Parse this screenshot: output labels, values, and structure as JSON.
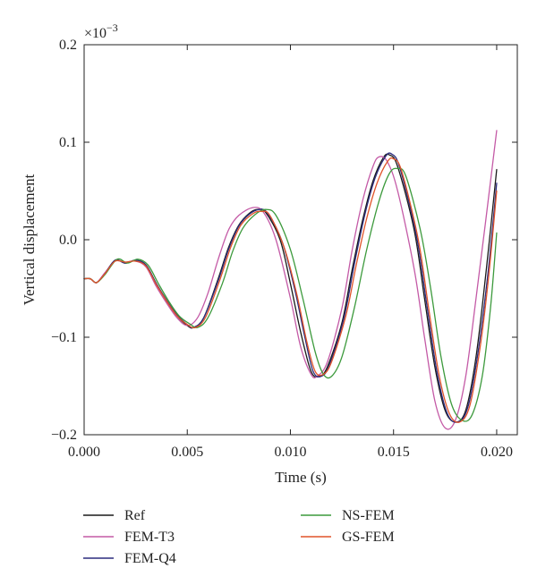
{
  "chart_data": {
    "type": "line",
    "xlabel": "Time (s)",
    "ylabel": "Vertical displacement",
    "multiplier": "×10",
    "multiplier_exp": "−3",
    "xlim": [
      0.0,
      0.021
    ],
    "ylim": [
      -0.2,
      0.2
    ],
    "xticks": [
      0.0,
      0.005,
      0.01,
      0.015,
      0.02
    ],
    "xtick_labels": [
      "0.000",
      "0.005",
      "0.010",
      "0.015",
      "0.020"
    ],
    "yticks": [
      -0.2,
      -0.1,
      0.0,
      0.1,
      0.2
    ],
    "ytick_labels": [
      "−0.2",
      "−0.1",
      "0.0",
      "0.1",
      "0.2"
    ],
    "grid": false,
    "legend_position": "bottom",
    "series": [
      {
        "name": "Ref",
        "color": "#1a1a1a",
        "points": [
          [
            0.0,
            -0.04
          ],
          [
            0.0003,
            -0.04
          ],
          [
            0.0006,
            -0.044
          ],
          [
            0.001,
            -0.035
          ],
          [
            0.0015,
            -0.021
          ],
          [
            0.002,
            -0.024
          ],
          [
            0.0025,
            -0.021
          ],
          [
            0.003,
            -0.026
          ],
          [
            0.0035,
            -0.045
          ],
          [
            0.004,
            -0.063
          ],
          [
            0.0045,
            -0.078
          ],
          [
            0.005,
            -0.088
          ],
          [
            0.0053,
            -0.09
          ],
          [
            0.0058,
            -0.08
          ],
          [
            0.0065,
            -0.04
          ],
          [
            0.007,
            -0.008
          ],
          [
            0.0075,
            0.015
          ],
          [
            0.008,
            0.027
          ],
          [
            0.0084,
            0.031
          ],
          [
            0.0088,
            0.028
          ],
          [
            0.0095,
            0.0
          ],
          [
            0.01,
            -0.045
          ],
          [
            0.0105,
            -0.095
          ],
          [
            0.011,
            -0.135
          ],
          [
            0.0114,
            -0.14
          ],
          [
            0.0118,
            -0.13
          ],
          [
            0.0125,
            -0.085
          ],
          [
            0.013,
            -0.03
          ],
          [
            0.0135,
            0.02
          ],
          [
            0.014,
            0.06
          ],
          [
            0.0145,
            0.084
          ],
          [
            0.0148,
            0.087
          ],
          [
            0.0152,
            0.075
          ],
          [
            0.016,
            0.01
          ],
          [
            0.0165,
            -0.06
          ],
          [
            0.017,
            -0.13
          ],
          [
            0.0175,
            -0.175
          ],
          [
            0.018,
            -0.187
          ],
          [
            0.0185,
            -0.175
          ],
          [
            0.019,
            -0.12
          ],
          [
            0.0195,
            -0.03
          ],
          [
            0.02,
            0.072
          ]
        ]
      },
      {
        "name": "FEM-T3",
        "color": "#c45aa6",
        "points": [
          [
            0.0,
            -0.04
          ],
          [
            0.0003,
            -0.04
          ],
          [
            0.0006,
            -0.044
          ],
          [
            0.001,
            -0.034
          ],
          [
            0.0015,
            -0.022
          ],
          [
            0.002,
            -0.023
          ],
          [
            0.0025,
            -0.022
          ],
          [
            0.003,
            -0.028
          ],
          [
            0.0035,
            -0.048
          ],
          [
            0.004,
            -0.065
          ],
          [
            0.0045,
            -0.08
          ],
          [
            0.005,
            -0.088
          ],
          [
            0.0055,
            -0.08
          ],
          [
            0.006,
            -0.055
          ],
          [
            0.0065,
            -0.02
          ],
          [
            0.007,
            0.01
          ],
          [
            0.0075,
            0.025
          ],
          [
            0.0082,
            0.033
          ],
          [
            0.0087,
            0.028
          ],
          [
            0.0093,
            0.0
          ],
          [
            0.01,
            -0.06
          ],
          [
            0.0105,
            -0.11
          ],
          [
            0.011,
            -0.138
          ],
          [
            0.0113,
            -0.14
          ],
          [
            0.0118,
            -0.125
          ],
          [
            0.0125,
            -0.07
          ],
          [
            0.013,
            -0.01
          ],
          [
            0.0135,
            0.04
          ],
          [
            0.014,
            0.075
          ],
          [
            0.0143,
            0.085
          ],
          [
            0.0147,
            0.08
          ],
          [
            0.0152,
            0.05
          ],
          [
            0.016,
            -0.03
          ],
          [
            0.0165,
            -0.1
          ],
          [
            0.017,
            -0.165
          ],
          [
            0.0175,
            -0.193
          ],
          [
            0.018,
            -0.185
          ],
          [
            0.0185,
            -0.14
          ],
          [
            0.019,
            -0.06
          ],
          [
            0.0195,
            0.025
          ],
          [
            0.02,
            0.112
          ]
        ]
      },
      {
        "name": "FEM-Q4",
        "color": "#2c2c7e",
        "points": [
          [
            0.0,
            -0.04
          ],
          [
            0.0003,
            -0.04
          ],
          [
            0.0006,
            -0.044
          ],
          [
            0.001,
            -0.035
          ],
          [
            0.0015,
            -0.021
          ],
          [
            0.002,
            -0.024
          ],
          [
            0.0025,
            -0.021
          ],
          [
            0.003,
            -0.026
          ],
          [
            0.0035,
            -0.045
          ],
          [
            0.004,
            -0.062
          ],
          [
            0.0045,
            -0.077
          ],
          [
            0.005,
            -0.087
          ],
          [
            0.0053,
            -0.09
          ],
          [
            0.0058,
            -0.08
          ],
          [
            0.0065,
            -0.042
          ],
          [
            0.007,
            -0.01
          ],
          [
            0.0075,
            0.014
          ],
          [
            0.008,
            0.026
          ],
          [
            0.0085,
            0.031
          ],
          [
            0.0089,
            0.027
          ],
          [
            0.0096,
            -0.002
          ],
          [
            0.0102,
            -0.05
          ],
          [
            0.0107,
            -0.1
          ],
          [
            0.0111,
            -0.135
          ],
          [
            0.0115,
            -0.14
          ],
          [
            0.0119,
            -0.128
          ],
          [
            0.0126,
            -0.08
          ],
          [
            0.0131,
            -0.025
          ],
          [
            0.0136,
            0.025
          ],
          [
            0.0141,
            0.063
          ],
          [
            0.0146,
            0.085
          ],
          [
            0.0149,
            0.088
          ],
          [
            0.0153,
            0.074
          ],
          [
            0.0161,
            0.005
          ],
          [
            0.0166,
            -0.065
          ],
          [
            0.0171,
            -0.135
          ],
          [
            0.0176,
            -0.178
          ],
          [
            0.0181,
            -0.187
          ],
          [
            0.0186,
            -0.172
          ],
          [
            0.0191,
            -0.115
          ],
          [
            0.0196,
            -0.03
          ],
          [
            0.02,
            0.058
          ]
        ]
      },
      {
        "name": "NS-FEM",
        "color": "#3c9a3c",
        "points": [
          [
            0.0,
            -0.04
          ],
          [
            0.0003,
            -0.04
          ],
          [
            0.0006,
            -0.044
          ],
          [
            0.001,
            -0.036
          ],
          [
            0.0016,
            -0.02
          ],
          [
            0.0021,
            -0.024
          ],
          [
            0.0026,
            -0.02
          ],
          [
            0.0031,
            -0.026
          ],
          [
            0.0036,
            -0.045
          ],
          [
            0.0041,
            -0.063
          ],
          [
            0.0046,
            -0.078
          ],
          [
            0.0051,
            -0.086
          ],
          [
            0.0055,
            -0.09
          ],
          [
            0.006,
            -0.08
          ],
          [
            0.0067,
            -0.045
          ],
          [
            0.0072,
            -0.012
          ],
          [
            0.0077,
            0.012
          ],
          [
            0.0083,
            0.026
          ],
          [
            0.0088,
            0.031
          ],
          [
            0.0093,
            0.025
          ],
          [
            0.01,
            -0.01
          ],
          [
            0.0106,
            -0.06
          ],
          [
            0.0112,
            -0.115
          ],
          [
            0.0116,
            -0.138
          ],
          [
            0.012,
            -0.14
          ],
          [
            0.0125,
            -0.12
          ],
          [
            0.0131,
            -0.07
          ],
          [
            0.0137,
            -0.01
          ],
          [
            0.0143,
            0.04
          ],
          [
            0.0148,
            0.068
          ],
          [
            0.0152,
            0.073
          ],
          [
            0.0156,
            0.065
          ],
          [
            0.0163,
            0.01
          ],
          [
            0.0168,
            -0.05
          ],
          [
            0.0173,
            -0.12
          ],
          [
            0.0178,
            -0.168
          ],
          [
            0.0183,
            -0.185
          ],
          [
            0.0188,
            -0.18
          ],
          [
            0.0193,
            -0.14
          ],
          [
            0.0197,
            -0.07
          ],
          [
            0.02,
            0.007
          ]
        ]
      },
      {
        "name": "GS-FEM",
        "color": "#e0542a",
        "points": [
          [
            0.0,
            -0.04
          ],
          [
            0.0003,
            -0.04
          ],
          [
            0.0006,
            -0.044
          ],
          [
            0.001,
            -0.035
          ],
          [
            0.0015,
            -0.022
          ],
          [
            0.002,
            -0.023
          ],
          [
            0.0025,
            -0.022
          ],
          [
            0.003,
            -0.027
          ],
          [
            0.0035,
            -0.046
          ],
          [
            0.004,
            -0.063
          ],
          [
            0.0045,
            -0.078
          ],
          [
            0.005,
            -0.087
          ],
          [
            0.0054,
            -0.09
          ],
          [
            0.0059,
            -0.079
          ],
          [
            0.0066,
            -0.04
          ],
          [
            0.0071,
            -0.008
          ],
          [
            0.0076,
            0.015
          ],
          [
            0.0082,
            0.027
          ],
          [
            0.0086,
            0.029
          ],
          [
            0.009,
            0.025
          ],
          [
            0.0097,
            -0.008
          ],
          [
            0.0103,
            -0.055
          ],
          [
            0.0108,
            -0.105
          ],
          [
            0.0112,
            -0.135
          ],
          [
            0.0116,
            -0.138
          ],
          [
            0.012,
            -0.125
          ],
          [
            0.0127,
            -0.077
          ],
          [
            0.0132,
            -0.025
          ],
          [
            0.0137,
            0.022
          ],
          [
            0.0142,
            0.058
          ],
          [
            0.0147,
            0.08
          ],
          [
            0.015,
            0.083
          ],
          [
            0.0154,
            0.07
          ],
          [
            0.0162,
            0.0
          ],
          [
            0.0167,
            -0.07
          ],
          [
            0.0172,
            -0.138
          ],
          [
            0.0177,
            -0.178
          ],
          [
            0.0182,
            -0.187
          ],
          [
            0.0187,
            -0.17
          ],
          [
            0.0192,
            -0.11
          ],
          [
            0.0196,
            -0.04
          ],
          [
            0.02,
            0.05
          ]
        ]
      }
    ]
  }
}
